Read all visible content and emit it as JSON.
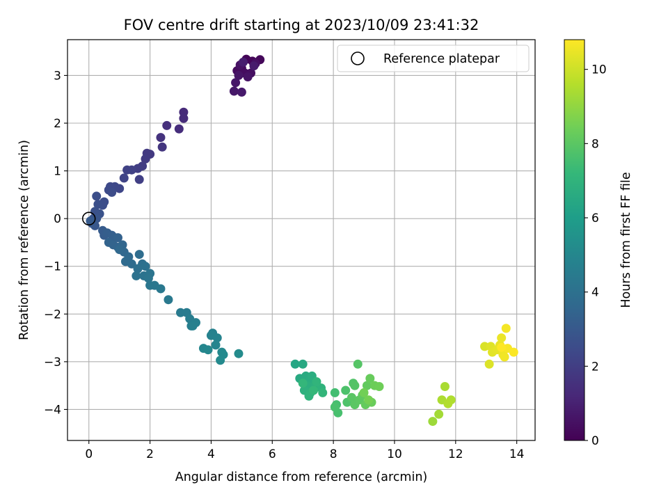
{
  "chart_data": {
    "type": "scatter",
    "title": "FOV centre drift starting at 2023/10/09 23:41:32",
    "xlabel": "Angular distance from reference (arcmin)",
    "ylabel": "Rotation from reference (arcmin)",
    "xlim": [
      -0.7,
      14.6
    ],
    "ylim": [
      -4.65,
      3.75
    ],
    "xticks": [
      0,
      2,
      4,
      6,
      8,
      10,
      12,
      14
    ],
    "yticks": [
      -4,
      -3,
      -2,
      -1,
      0,
      1,
      2,
      3
    ],
    "grid": true,
    "legend": {
      "placement": "top-right",
      "entries": [
        "Reference platepar"
      ]
    },
    "reference_point": {
      "x": 0,
      "y": 0,
      "marker": "open-circle"
    },
    "colorbar": {
      "label": "Hours from first FF file",
      "colormap": "viridis",
      "min": 0,
      "max": 10.8,
      "ticks": [
        0,
        2,
        4,
        6,
        8,
        10
      ]
    },
    "points": [
      [
        5.15,
        3.34,
        0.1
      ],
      [
        5.35,
        3.3,
        0.15
      ],
      [
        5.6,
        3.33,
        0.2
      ],
      [
        5.0,
        3.15,
        0.25
      ],
      [
        4.85,
        3.1,
        0.3
      ],
      [
        5.1,
        3.05,
        0.35
      ],
      [
        5.3,
        3.05,
        0.4
      ],
      [
        5.45,
        3.25,
        0.45
      ],
      [
        4.95,
        3.22,
        0.5
      ],
      [
        5.2,
        2.97,
        0.55
      ],
      [
        4.9,
        3.0,
        0.6
      ],
      [
        4.8,
        2.85,
        0.65
      ],
      [
        4.75,
        2.67,
        0.7
      ],
      [
        5.0,
        2.65,
        0.75
      ],
      [
        5.4,
        3.2,
        0.8
      ],
      [
        5.05,
        3.28,
        0.85
      ],
      [
        3.1,
        2.23,
        1.3
      ],
      [
        3.1,
        2.1,
        1.35
      ],
      [
        2.95,
        1.88,
        1.4
      ],
      [
        2.55,
        1.95,
        1.5
      ],
      [
        2.35,
        1.7,
        1.6
      ],
      [
        2.4,
        1.5,
        1.7
      ],
      [
        2.0,
        1.35,
        1.8
      ],
      [
        1.9,
        1.37,
        1.85
      ],
      [
        1.85,
        1.25,
        1.9
      ],
      [
        1.75,
        1.1,
        1.95
      ],
      [
        1.6,
        1.05,
        2.0
      ],
      [
        1.65,
        0.82,
        2.05
      ],
      [
        1.4,
        1.02,
        2.1
      ],
      [
        1.25,
        1.02,
        2.15
      ],
      [
        1.15,
        0.85,
        2.2
      ],
      [
        1.0,
        0.63,
        2.3
      ],
      [
        0.85,
        0.67,
        2.35
      ],
      [
        0.7,
        0.67,
        2.4
      ],
      [
        0.65,
        0.6,
        2.45
      ],
      [
        0.75,
        0.55,
        2.5
      ],
      [
        0.5,
        0.35,
        2.55
      ],
      [
        0.45,
        0.28,
        2.6
      ],
      [
        0.25,
        0.47,
        2.6
      ],
      [
        0.3,
        0.3,
        2.65
      ],
      [
        0.2,
        0.15,
        2.7
      ],
      [
        0.35,
        0.1,
        2.75
      ],
      [
        0.15,
        0.0,
        2.8
      ],
      [
        0.25,
        0.0,
        2.85
      ],
      [
        0.1,
        -0.1,
        2.9
      ],
      [
        0.2,
        -0.15,
        2.95
      ],
      [
        0.15,
        -0.1,
        3.0
      ],
      [
        0.05,
        -0.05,
        3.05
      ],
      [
        0.45,
        -0.25,
        3.1
      ],
      [
        0.5,
        -0.35,
        3.15
      ],
      [
        0.6,
        -0.3,
        3.2
      ],
      [
        0.75,
        -0.35,
        3.25
      ],
      [
        0.85,
        -0.4,
        3.3
      ],
      [
        0.95,
        -0.4,
        3.35
      ],
      [
        0.65,
        -0.5,
        3.4
      ],
      [
        0.8,
        -0.55,
        3.45
      ],
      [
        0.95,
        -0.6,
        3.5
      ],
      [
        1.1,
        -0.55,
        3.55
      ],
      [
        1.15,
        -0.7,
        3.6
      ],
      [
        1.0,
        -0.65,
        3.65
      ],
      [
        1.3,
        -0.8,
        3.7
      ],
      [
        1.2,
        -0.9,
        3.75
      ],
      [
        1.4,
        -0.95,
        3.8
      ],
      [
        1.65,
        -0.75,
        3.85
      ],
      [
        1.75,
        -0.95,
        3.9
      ],
      [
        1.6,
        -1.05,
        3.95
      ],
      [
        1.85,
        -1.0,
        4.0
      ],
      [
        1.55,
        -1.2,
        4.05
      ],
      [
        1.8,
        -1.2,
        4.1
      ],
      [
        2.0,
        -1.15,
        4.15
      ],
      [
        1.95,
        -1.25,
        4.2
      ],
      [
        2.0,
        -1.4,
        4.25
      ],
      [
        2.15,
        -1.4,
        4.3
      ],
      [
        2.35,
        -1.47,
        4.35
      ],
      [
        2.6,
        -1.7,
        4.4
      ],
      [
        3.0,
        -1.97,
        4.45
      ],
      [
        3.2,
        -1.97,
        4.5
      ],
      [
        3.3,
        -2.1,
        4.55
      ],
      [
        3.35,
        -2.25,
        4.6
      ],
      [
        3.5,
        -2.18,
        4.65
      ],
      [
        3.4,
        -2.25,
        4.7
      ],
      [
        4.05,
        -2.4,
        4.75
      ],
      [
        4.0,
        -2.45,
        4.8
      ],
      [
        4.2,
        -2.5,
        4.85
      ],
      [
        4.15,
        -2.65,
        4.9
      ],
      [
        3.75,
        -2.72,
        4.95
      ],
      [
        3.9,
        -2.75,
        5.0
      ],
      [
        4.35,
        -2.8,
        5.05
      ],
      [
        4.4,
        -2.85,
        5.1
      ],
      [
        4.3,
        -2.97,
        5.15
      ],
      [
        4.9,
        -2.83,
        5.2
      ],
      [
        6.75,
        -3.05,
        6.4
      ],
      [
        7.0,
        -3.05,
        6.5
      ],
      [
        6.9,
        -3.35,
        6.55
      ],
      [
        7.1,
        -3.3,
        6.6
      ],
      [
        7.2,
        -3.4,
        6.65
      ],
      [
        7.3,
        -3.3,
        6.7
      ],
      [
        7.15,
        -3.5,
        6.75
      ],
      [
        7.4,
        -3.5,
        6.8
      ],
      [
        7.05,
        -3.6,
        6.85
      ],
      [
        7.25,
        -3.65,
        6.9
      ],
      [
        7.6,
        -3.55,
        6.95
      ],
      [
        7.2,
        -3.72,
        7.0
      ],
      [
        7.45,
        -3.42,
        7.05
      ],
      [
        7.65,
        -3.65,
        7.1
      ],
      [
        7.0,
        -3.45,
        7.15
      ],
      [
        7.35,
        -3.6,
        7.2
      ],
      [
        8.05,
        -3.65,
        7.5
      ],
      [
        8.1,
        -3.9,
        7.55
      ],
      [
        8.15,
        -4.07,
        7.6
      ],
      [
        8.05,
        -3.95,
        7.65
      ],
      [
        8.4,
        -3.6,
        7.7
      ],
      [
        8.45,
        -3.85,
        7.75
      ],
      [
        8.65,
        -3.45,
        7.8
      ],
      [
        8.7,
        -3.5,
        7.85
      ],
      [
        8.8,
        -3.05,
        7.9
      ],
      [
        8.6,
        -3.75,
        7.95
      ],
      [
        8.7,
        -3.9,
        8.0
      ],
      [
        8.85,
        -3.8,
        8.05
      ],
      [
        8.95,
        -3.7,
        8.1
      ],
      [
        9.1,
        -3.5,
        8.15
      ],
      [
        9.05,
        -3.9,
        8.2
      ],
      [
        9.2,
        -3.35,
        8.25
      ],
      [
        9.25,
        -3.85,
        8.3
      ],
      [
        9.35,
        -3.5,
        8.35
      ],
      [
        9.5,
        -3.52,
        8.4
      ],
      [
        9.0,
        -3.65,
        8.45
      ],
      [
        9.15,
        -3.8,
        8.5
      ],
      [
        11.25,
        -4.25,
        9.2
      ],
      [
        11.45,
        -4.1,
        9.3
      ],
      [
        11.65,
        -3.52,
        9.4
      ],
      [
        11.55,
        -3.8,
        9.45
      ],
      [
        11.85,
        -3.8,
        9.5
      ],
      [
        11.75,
        -3.88,
        9.55
      ],
      [
        12.95,
        -2.68,
        10.2
      ],
      [
        13.1,
        -3.05,
        10.25
      ],
      [
        13.15,
        -2.68,
        10.3
      ],
      [
        13.2,
        -2.8,
        10.35
      ],
      [
        13.35,
        -2.75,
        10.4
      ],
      [
        13.45,
        -2.65,
        10.45
      ],
      [
        13.5,
        -2.5,
        10.5
      ],
      [
        13.55,
        -2.85,
        10.55
      ],
      [
        13.6,
        -2.9,
        10.6
      ],
      [
        13.65,
        -2.3,
        10.65
      ],
      [
        13.7,
        -2.72,
        10.7
      ],
      [
        13.9,
        -2.8,
        10.75
      ],
      [
        13.5,
        -2.7,
        10.8
      ]
    ]
  }
}
